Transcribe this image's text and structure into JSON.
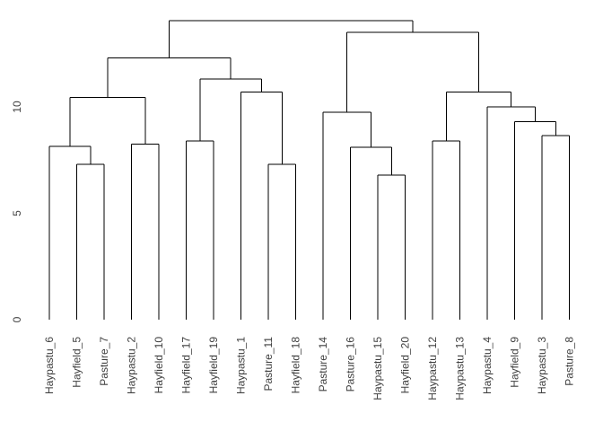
{
  "figure": {
    "background": "#ffffff",
    "line_color": "#000000",
    "text_color": "#3f3f3f"
  },
  "chart_data": {
    "type": "dendrogram",
    "title": "",
    "xlabel": "",
    "ylabel": "",
    "grid": false,
    "legend": "none",
    "y_axis": {
      "ticks": [
        0,
        5,
        10
      ],
      "tick_labels": [
        "0",
        "5",
        "10"
      ],
      "range": [
        0,
        14.6
      ]
    },
    "leaves": [
      "Haypastu_6",
      "Hayfield_5",
      "Pasture_7",
      "Haypastu_2",
      "Hayfield_10",
      "Hayfield_17",
      "Hayfield_19",
      "Haypastu_1",
      "Pasture_11",
      "Hayfield_18",
      "Pasture_14",
      "Pasture_16",
      "Haypastu_15",
      "Hayfield_20",
      "Haypastu_12",
      "Haypastu_13",
      "Haypastu_4",
      "Hayfield_9",
      "Haypastu_3",
      "Pasture_8"
    ],
    "tree": {
      "height": 14.05,
      "children": [
        {
          "height": 12.3,
          "children": [
            {
              "height": 10.45,
              "children": [
                {
                  "height": 8.15,
                  "children": [
                    {
                      "leaf": "Haypastu_6"
                    },
                    {
                      "height": 7.3,
                      "children": [
                        {
                          "leaf": "Hayfield_5"
                        },
                        {
                          "leaf": "Pasture_7"
                        }
                      ]
                    }
                  ]
                },
                {
                  "height": 8.25,
                  "children": [
                    {
                      "leaf": "Haypastu_2"
                    },
                    {
                      "leaf": "Hayfield_10"
                    }
                  ]
                }
              ]
            },
            {
              "height": 11.3,
              "children": [
                {
                  "height": 8.4,
                  "children": [
                    {
                      "leaf": "Hayfield_17"
                    },
                    {
                      "leaf": "Hayfield_19"
                    }
                  ]
                },
                {
                  "height": 10.7,
                  "children": [
                    {
                      "leaf": "Haypastu_1"
                    },
                    {
                      "height": 7.3,
                      "children": [
                        {
                          "leaf": "Pasture_11"
                        },
                        {
                          "leaf": "Hayfield_18"
                        }
                      ]
                    }
                  ]
                }
              ]
            }
          ]
        },
        {
          "height": 13.5,
          "children": [
            {
              "height": 9.75,
              "children": [
                {
                  "leaf": "Pasture_14"
                },
                {
                  "height": 8.1,
                  "children": [
                    {
                      "leaf": "Pasture_16"
                    },
                    {
                      "height": 6.8,
                      "children": [
                        {
                          "leaf": "Haypastu_15"
                        },
                        {
                          "leaf": "Hayfield_20"
                        }
                      ]
                    }
                  ]
                }
              ]
            },
            {
              "height": 10.7,
              "children": [
                {
                  "height": 8.4,
                  "children": [
                    {
                      "leaf": "Haypastu_12"
                    },
                    {
                      "leaf": "Haypastu_13"
                    }
                  ]
                },
                {
                  "height": 10.0,
                  "children": [
                    {
                      "leaf": "Haypastu_4"
                    },
                    {
                      "height": 9.3,
                      "children": [
                        {
                          "leaf": "Hayfield_9"
                        },
                        {
                          "height": 8.65,
                          "children": [
                            {
                              "leaf": "Haypastu_3"
                            },
                            {
                              "leaf": "Pasture_8"
                            }
                          ]
                        }
                      ]
                    }
                  ]
                }
              ]
            }
          ]
        }
      ]
    }
  }
}
